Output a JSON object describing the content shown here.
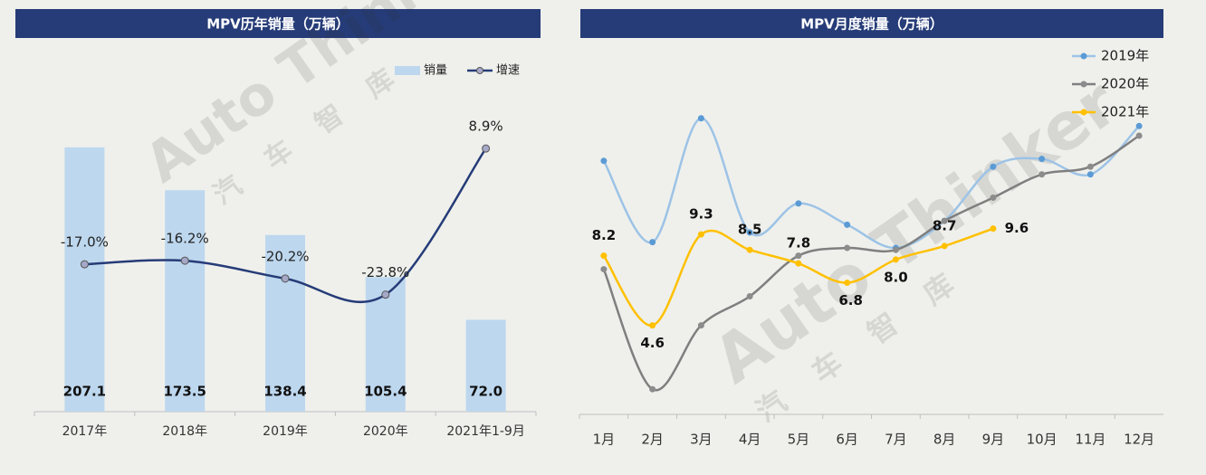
{
  "watermark": [
    "Auto Thinker",
    "汽 车 智 库"
  ],
  "chart_data": [
    {
      "type": "combo",
      "title": "MPV历年销量（万辆）",
      "categories": [
        "2017年",
        "2018年",
        "2019年",
        "2020年",
        "2021年1-9月"
      ],
      "ylim": [
        0,
        280
      ],
      "y2lim": [
        -50,
        30
      ],
      "legend": "top-right",
      "series": [
        {
          "name": "销量",
          "type": "bar",
          "color": "#bdd7ee",
          "values": [
            207.1,
            173.5,
            138.4,
            105.4,
            72.0
          ],
          "value_labels": [
            "207.1",
            "173.5",
            "138.4",
            "105.4",
            "72.0"
          ]
        },
        {
          "name": "增速",
          "type": "line",
          "axis": "y2",
          "color": "#263c78",
          "values": [
            -17.0,
            -16.2,
            -20.2,
            -23.8,
            8.9
          ],
          "value_labels": [
            "-17.0%",
            "-16.2%",
            "-20.2%",
            "-23.8%",
            "8.9%"
          ]
        }
      ]
    },
    {
      "type": "line",
      "title": "MPV月度销量（万辆）",
      "categories": [
        "1月",
        "2月",
        "3月",
        "4月",
        "5月",
        "6月",
        "7月",
        "8月",
        "9月",
        "10月",
        "11月",
        "12月"
      ],
      "ylim": [
        0,
        18
      ],
      "legend": "top-right",
      "series": [
        {
          "name": "2019年",
          "type": "line",
          "color": "#9dc3e6",
          "marker": "#5b9bd5",
          "values": [
            13.1,
            8.9,
            15.3,
            9.4,
            10.9,
            9.8,
            8.6,
            10.0,
            12.8,
            13.2,
            12.4,
            14.9
          ]
        },
        {
          "name": "2020年",
          "type": "line",
          "color": "#7f7f7f",
          "marker": "#8c8c8c",
          "values": [
            7.5,
            1.3,
            4.6,
            6.1,
            8.2,
            8.6,
            8.5,
            10.0,
            11.2,
            12.4,
            12.8,
            14.4
          ]
        },
        {
          "name": "2021年",
          "type": "line",
          "color": "#ffc000",
          "marker": "#ffc000",
          "values": [
            8.2,
            4.6,
            9.3,
            8.5,
            7.8,
            6.8,
            8.0,
            8.7,
            9.6,
            null,
            null,
            null
          ],
          "value_labels": [
            "8.2",
            "4.6",
            "9.3",
            "8.5",
            "7.8",
            "6.8",
            "8.0",
            "8.7",
            "9.6",
            null,
            null,
            null
          ]
        }
      ]
    }
  ]
}
